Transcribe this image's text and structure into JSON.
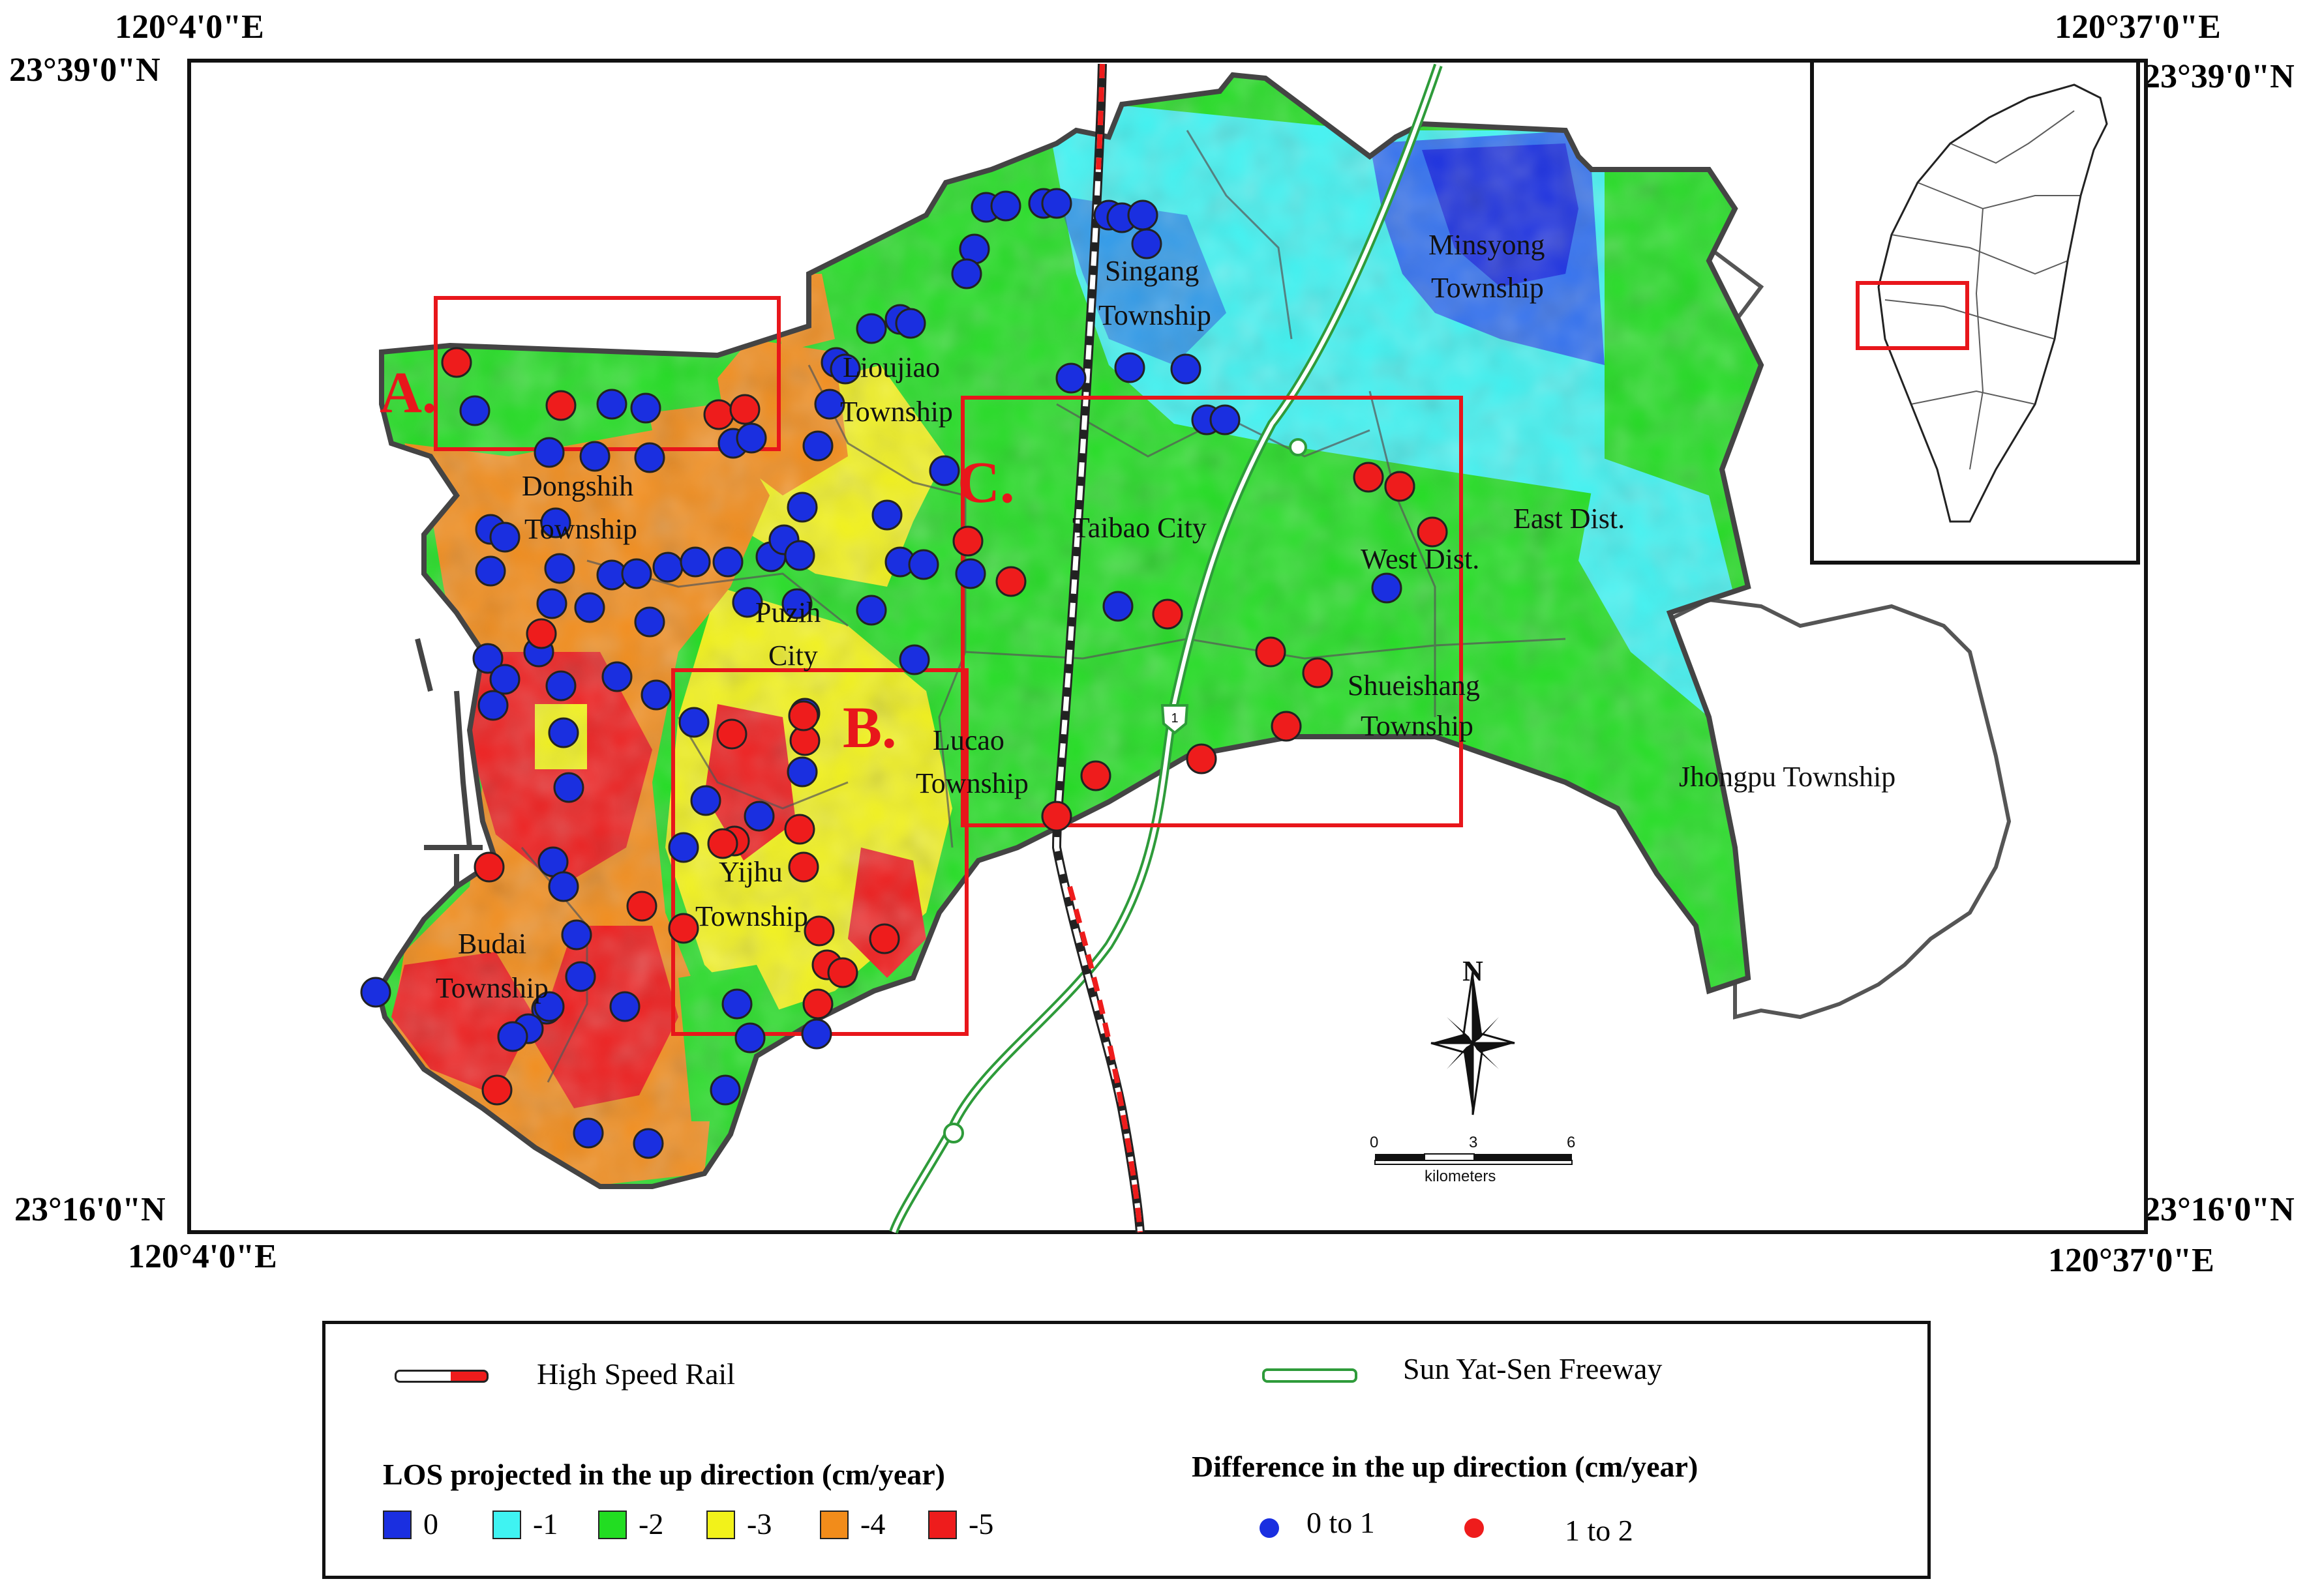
{
  "coords": {
    "top_left_lon": "120°4'0\"E",
    "top_right_lon": "120°37'0\"E",
    "bottom_left_lon": "120°4'0\"E",
    "bottom_right_lon": "120°37'0\"E",
    "left_top_lat": "23°39'0\"N",
    "right_top_lat": "23°39'0\"N",
    "left_bottom_lat": "23°16'0\"N",
    "right_bottom_lat": "23°16'0\"N"
  },
  "place_labels": [
    {
      "text": "Singang",
      "id": "singang"
    },
    {
      "text": "Township",
      "id": "singang-2"
    },
    {
      "text": "Minsyong",
      "id": "minsyong"
    },
    {
      "text": "Township",
      "id": "minsyong-2"
    },
    {
      "text": "Lioujiao",
      "id": "lioujiao"
    },
    {
      "text": "Township",
      "id": "lioujiao-2"
    },
    {
      "text": "Dongshih",
      "id": "dongshih"
    },
    {
      "text": "Township",
      "id": "dongshih-2"
    },
    {
      "text": "Taibao City",
      "id": "taibao"
    },
    {
      "text": "East Dist.",
      "id": "east-dist"
    },
    {
      "text": "West Dist.",
      "id": "west-dist"
    },
    {
      "text": "Puzih",
      "id": "puzih"
    },
    {
      "text": "City",
      "id": "puzih-2"
    },
    {
      "text": "Lucao",
      "id": "lucao"
    },
    {
      "text": "Township",
      "id": "lucao-2"
    },
    {
      "text": "Shueishang",
      "id": "shueishang"
    },
    {
      "text": "Township",
      "id": "shueishang-2"
    },
    {
      "text": "Jhongpu Township",
      "id": "jhongpu"
    },
    {
      "text": "Yijhu",
      "id": "yijhu"
    },
    {
      "text": "Township",
      "id": "yijhu-2"
    },
    {
      "text": "Budai",
      "id": "budai"
    },
    {
      "text": "Township",
      "id": "budai-2"
    }
  ],
  "regions": {
    "a": "A.",
    "b": "B.",
    "c": "C."
  },
  "north_label": "N",
  "scale": {
    "ticks": [
      "0",
      "3",
      "6"
    ],
    "unit": "kilometers"
  },
  "legend": {
    "rail_label": "High Speed Rail",
    "freeway_label": "Sun Yat-Sen Freeway",
    "freeway_shield": "1",
    "los_title": "LOS projected in the up direction (cm/year)",
    "los_classes": [
      {
        "value": "0",
        "color": "#1a2fe0"
      },
      {
        "value": "-1",
        "color": "#3ff3f2"
      },
      {
        "value": "-2",
        "color": "#22dd22"
      },
      {
        "value": "-3",
        "color": "#f2f21a"
      },
      {
        "value": "-4",
        "color": "#f28c1a"
      },
      {
        "value": "-5",
        "color": "#ee1c1c"
      }
    ],
    "diff_title": "Difference in the up direction (cm/year)",
    "diff_classes": [
      {
        "label": "0 to 1",
        "color": "#1a2fe0"
      },
      {
        "label": "1 to 2",
        "color": "#ee1c1c"
      }
    ]
  },
  "colors": {
    "blue_points": "#1a2fe0",
    "red_points": "#ee1c1c",
    "region_box": "#e8161b",
    "freeway": "#2e9b3a"
  }
}
